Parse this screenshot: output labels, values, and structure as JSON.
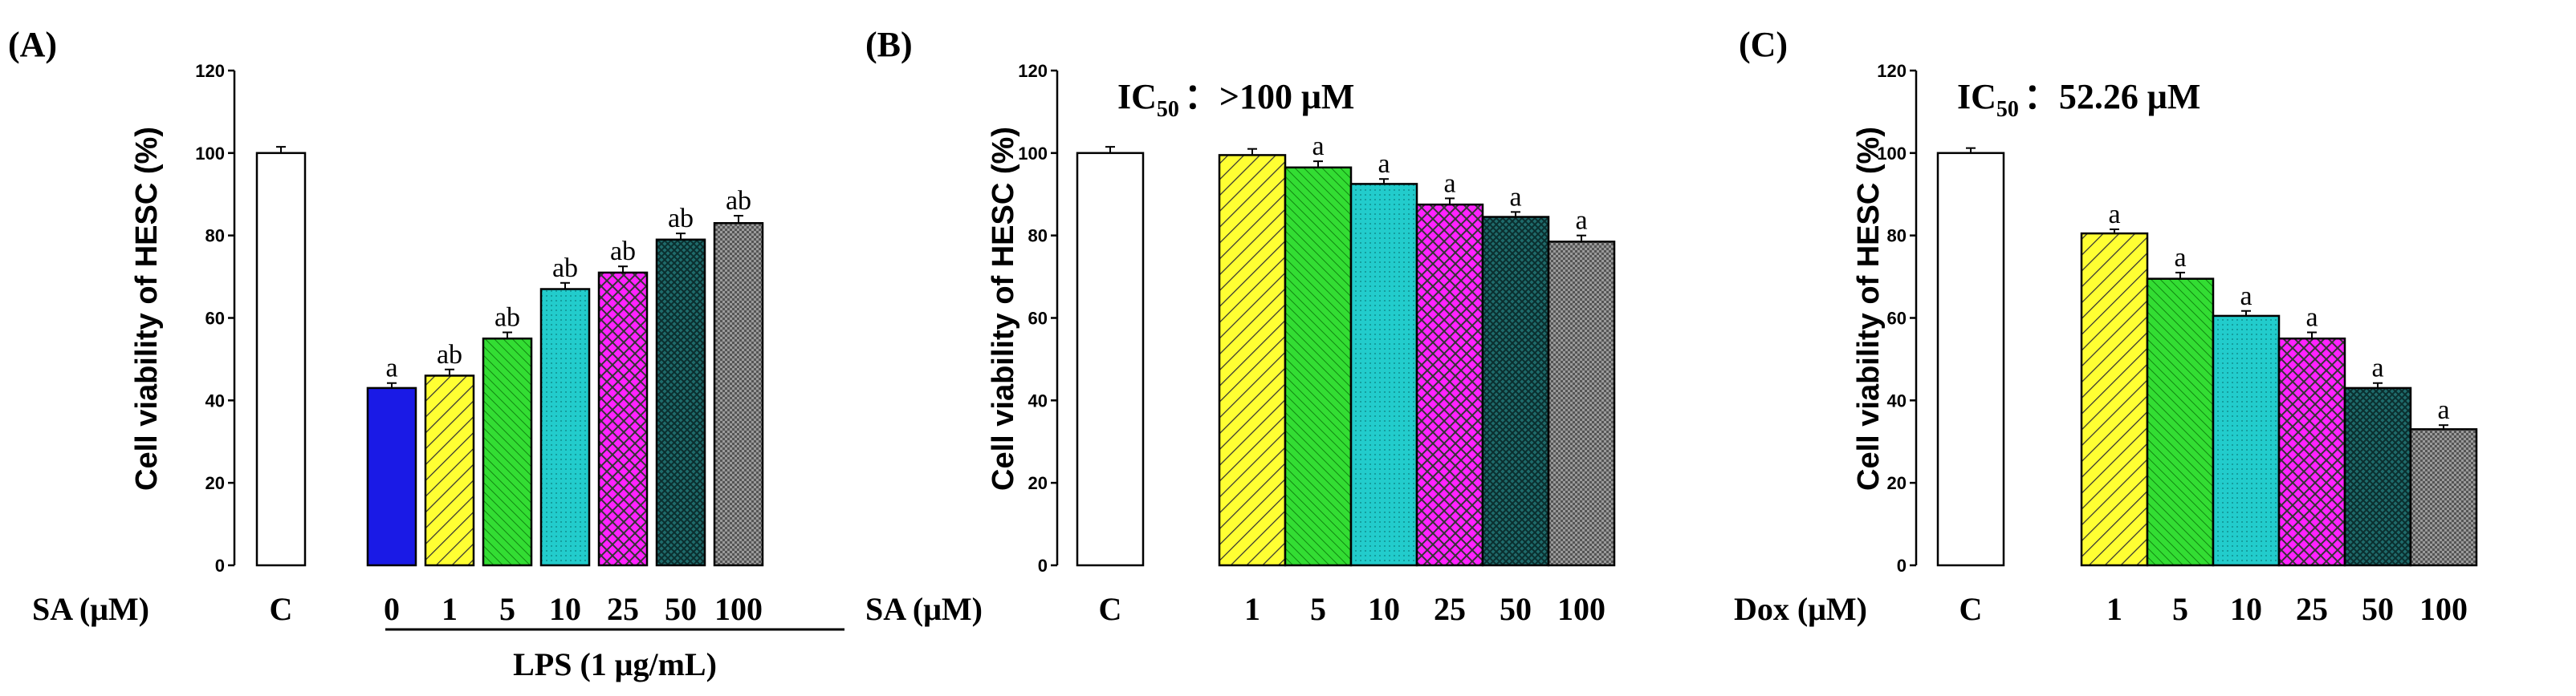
{
  "colors": {
    "bar_fills": [
      "#ffffff",
      "#1a1ae6",
      "#ffff33",
      "#33dd33",
      "#22cccc",
      "#ff22ff",
      "#1f6b6b",
      "#8f8f8f"
    ],
    "axis": "#000000"
  },
  "chart_data": [
    {
      "type": "bar",
      "panel_label": "(A)",
      "ylabel": "Cell viability of HESC (%)",
      "ylim": [
        0,
        120
      ],
      "yticks": [
        0,
        20,
        40,
        60,
        80,
        100,
        120
      ],
      "treatment_label": "SA (μM)",
      "categories": [
        "C",
        "0",
        "1",
        "5",
        "10",
        "25",
        "50",
        "100"
      ],
      "values": [
        100,
        43,
        46,
        55,
        67,
        71,
        79,
        83
      ],
      "errors": [
        1.5,
        1.2,
        1.5,
        1.5,
        1.5,
        1.5,
        1.5,
        1.8
      ],
      "significance": [
        "",
        "a",
        "ab",
        "ab",
        "ab",
        "ab",
        "ab",
        "ab"
      ],
      "group_label": "LPS (1 μg/mL)",
      "ic50": null
    },
    {
      "type": "bar",
      "panel_label": "(B)",
      "ylabel": "Cell viability of HESC (%)",
      "ylim": [
        0,
        120
      ],
      "yticks": [
        0,
        20,
        40,
        60,
        80,
        100,
        120
      ],
      "treatment_label": "SA (μM)",
      "categories": [
        "C",
        "1",
        "5",
        "10",
        "25",
        "50",
        "100"
      ],
      "values": [
        100,
        99.5,
        96.5,
        92.5,
        87.5,
        84.5,
        78.5
      ],
      "errors": [
        1.5,
        1.5,
        1.5,
        1.2,
        1.5,
        1.2,
        1.5
      ],
      "significance": [
        "",
        "",
        "a",
        "a",
        "a",
        "a",
        "a"
      ],
      "group_label": "",
      "ic50": {
        "prefix": "IC",
        "sub": "50",
        "value": "：>100 μM"
      }
    },
    {
      "type": "bar",
      "panel_label": "(C)",
      "ylabel": "Cell viability of HESC (%)",
      "ylim": [
        0,
        120
      ],
      "yticks": [
        0,
        20,
        40,
        60,
        80,
        100,
        120
      ],
      "treatment_label": "Dox (μM)",
      "categories": [
        "C",
        "1",
        "5",
        "10",
        "25",
        "50",
        "100"
      ],
      "values": [
        100,
        80.5,
        69.5,
        60.5,
        55,
        43,
        33
      ],
      "errors": [
        1.2,
        1.0,
        1.5,
        1.2,
        1.5,
        1.2,
        1.0
      ],
      "significance": [
        "",
        "a",
        "a",
        "a",
        "a",
        "a",
        "a"
      ],
      "group_label": "",
      "ic50": {
        "prefix": "IC",
        "sub": "50",
        "value": "：52.26 μM"
      }
    }
  ]
}
